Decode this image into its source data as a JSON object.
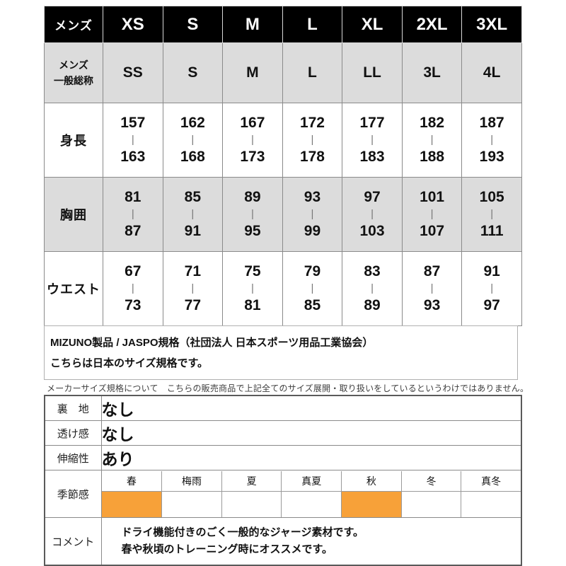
{
  "size_table": {
    "header_label": "メンズ",
    "header_sizes": [
      "XS",
      "S",
      "M",
      "L",
      "XL",
      "2XL",
      "3XL"
    ],
    "general_label_line1": "メンズ",
    "general_label_line2": "一般総称",
    "general_values": [
      "SS",
      "S",
      "M",
      "L",
      "LL",
      "3L",
      "4L"
    ],
    "range_separator": "|",
    "rows": [
      {
        "label": "身長",
        "shaded": false,
        "ranges": [
          {
            "from": "157",
            "to": "163"
          },
          {
            "from": "162",
            "to": "168"
          },
          {
            "from": "167",
            "to": "173"
          },
          {
            "from": "172",
            "to": "178"
          },
          {
            "from": "177",
            "to": "183"
          },
          {
            "from": "182",
            "to": "188"
          },
          {
            "from": "187",
            "to": "193"
          }
        ]
      },
      {
        "label": "胸囲",
        "shaded": true,
        "ranges": [
          {
            "from": "81",
            "to": "87"
          },
          {
            "from": "85",
            "to": "91"
          },
          {
            "from": "89",
            "to": "95"
          },
          {
            "from": "93",
            "to": "99"
          },
          {
            "from": "97",
            "to": "103"
          },
          {
            "from": "101",
            "to": "107"
          },
          {
            "from": "105",
            "to": "111"
          }
        ]
      },
      {
        "label": "ウエスト",
        "shaded": false,
        "ranges": [
          {
            "from": "67",
            "to": "73"
          },
          {
            "from": "71",
            "to": "77"
          },
          {
            "from": "75",
            "to": "81"
          },
          {
            "from": "79",
            "to": "85"
          },
          {
            "from": "83",
            "to": "89"
          },
          {
            "from": "87",
            "to": "93"
          },
          {
            "from": "91",
            "to": "97"
          }
        ]
      }
    ]
  },
  "standards_note": {
    "line1": "MIZUNO製品 / JASPO規格（社団法人 日本スポーツ用品工業協会）",
    "line2": "こちらは日本のサイズ規格です。"
  },
  "disclaimer": "メーカーサイズ規格について　こちらの販売商品で上記全てのサイズ展開・取り扱いをしているというわけではありません。",
  "spec_table": {
    "rows": [
      {
        "label": "裏　地",
        "value": "なし"
      },
      {
        "label": "透け感",
        "value": "なし"
      },
      {
        "label": "伸縮性",
        "value": "あり"
      }
    ],
    "season_label": "季節感",
    "season_columns": [
      "春",
      "梅雨",
      "夏",
      "真夏",
      "秋",
      "冬",
      "真冬"
    ],
    "season_highlighted_indexes": [
      0,
      4
    ],
    "comment_label": "コメント",
    "comment_line1": "ドライ機能付きのごく一般的なジャージ素材です。",
    "comment_line2": "春や秋頃のトレーニング時にオススメです。"
  },
  "colors": {
    "header_bg": "#000000",
    "header_text": "#ffffff",
    "shaded_cell_bg": "#dcdcdc",
    "season_highlight": "#f7a139",
    "border": "#8a8a8a"
  }
}
